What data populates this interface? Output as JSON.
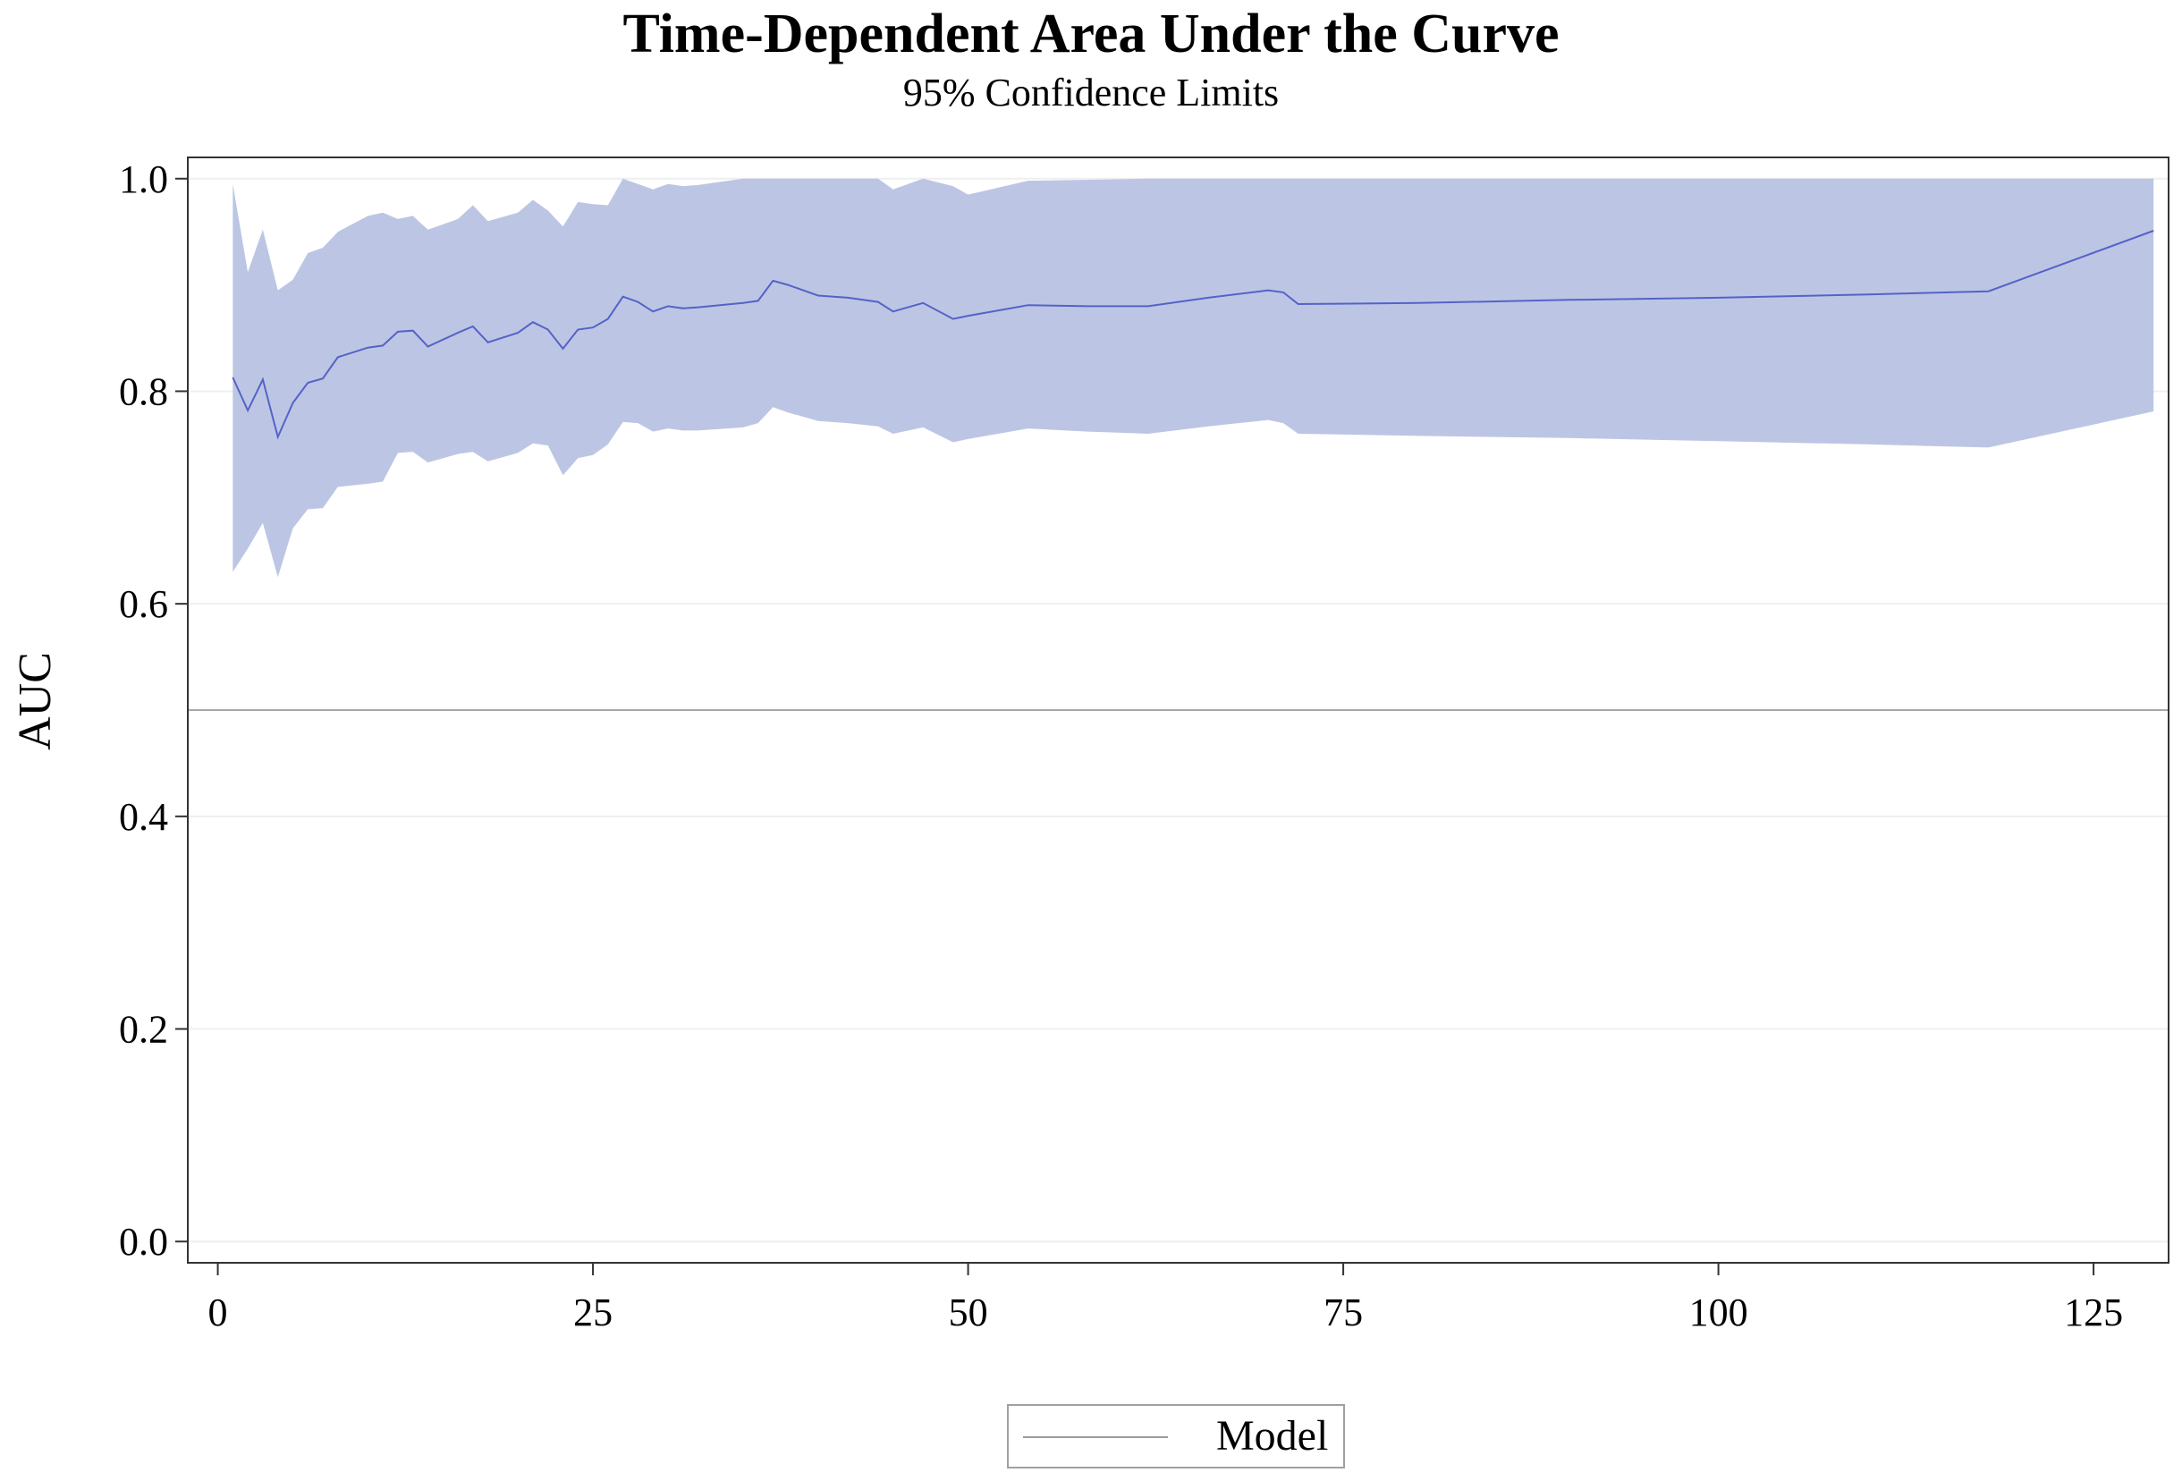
{
  "chart_data": {
    "type": "area",
    "title": "Time-Dependent Area Under the Curve",
    "subtitle": "95% Confidence Limits",
    "xlabel": "",
    "ylabel": "AUC",
    "xlim": [
      -2,
      130
    ],
    "ylim": [
      -0.02,
      1.02
    ],
    "x_ticks": [
      0,
      25,
      50,
      75,
      100,
      125
    ],
    "x_tick_labels": [
      "0",
      "25",
      "50",
      "75",
      "100",
      "125"
    ],
    "y_ticks": [
      0.0,
      0.2,
      0.4,
      0.6,
      0.8,
      1.0
    ],
    "y_tick_labels": [
      "0.0",
      "0.2",
      "0.4",
      "0.6",
      "0.8",
      "1.0"
    ],
    "grid": true,
    "reference_line": 0.5,
    "legend_position": "bottom-center",
    "legend": [
      "Model"
    ],
    "series": [
      {
        "name": "Model",
        "color": "#5562c8",
        "band_color": "#bcc6e4",
        "x": [
          1,
          2,
          3,
          4,
          5,
          6,
          7,
          8,
          10,
          11,
          12,
          13,
          14,
          16,
          17,
          18,
          20,
          21,
          22,
          23,
          24,
          25,
          26,
          27,
          28,
          29,
          30,
          31,
          32,
          35,
          36,
          37,
          38,
          40,
          42,
          44,
          45,
          47,
          49,
          50,
          54,
          58,
          62,
          66,
          70,
          71,
          72,
          80,
          90,
          100,
          110,
          118,
          129
        ],
        "values": [
          0.813,
          0.782,
          0.811,
          0.757,
          0.789,
          0.808,
          0.812,
          0.832,
          0.841,
          0.843,
          0.856,
          0.857,
          0.842,
          0.855,
          0.861,
          0.846,
          0.855,
          0.865,
          0.858,
          0.84,
          0.858,
          0.86,
          0.868,
          0.889,
          0.884,
          0.875,
          0.88,
          0.878,
          0.879,
          0.883,
          0.885,
          0.904,
          0.9,
          0.89,
          0.888,
          0.884,
          0.875,
          0.883,
          0.868,
          0.871,
          0.881,
          0.88,
          0.88,
          0.888,
          0.895,
          0.893,
          0.882,
          0.883,
          0.886,
          0.888,
          0.891,
          0.894,
          0.951
        ],
        "lower": [
          0.63,
          0.652,
          0.676,
          0.625,
          0.671,
          0.689,
          0.69,
          0.71,
          0.713,
          0.715,
          0.742,
          0.743,
          0.733,
          0.741,
          0.743,
          0.734,
          0.742,
          0.751,
          0.749,
          0.721,
          0.737,
          0.74,
          0.75,
          0.771,
          0.77,
          0.762,
          0.765,
          0.763,
          0.763,
          0.766,
          0.77,
          0.785,
          0.78,
          0.772,
          0.77,
          0.767,
          0.76,
          0.766,
          0.752,
          0.755,
          0.765,
          0.762,
          0.76,
          0.767,
          0.773,
          0.77,
          0.76,
          0.758,
          0.756,
          0.753,
          0.75,
          0.747,
          0.781
        ],
        "upper": [
          0.995,
          0.912,
          0.952,
          0.895,
          0.905,
          0.93,
          0.935,
          0.95,
          0.965,
          0.968,
          0.962,
          0.965,
          0.952,
          0.962,
          0.975,
          0.96,
          0.968,
          0.98,
          0.97,
          0.955,
          0.978,
          0.976,
          0.975,
          1.0,
          0.995,
          0.99,
          0.995,
          0.993,
          0.994,
          1.0,
          1.0,
          1.0,
          1.0,
          1.0,
          1.0,
          1.0,
          0.99,
          1.0,
          0.993,
          0.985,
          0.998,
          0.999,
          1.0,
          1.0,
          1.0,
          1.0,
          1.0,
          1.0,
          1.0,
          1.0,
          1.0,
          1.0,
          1.0
        ]
      }
    ]
  }
}
